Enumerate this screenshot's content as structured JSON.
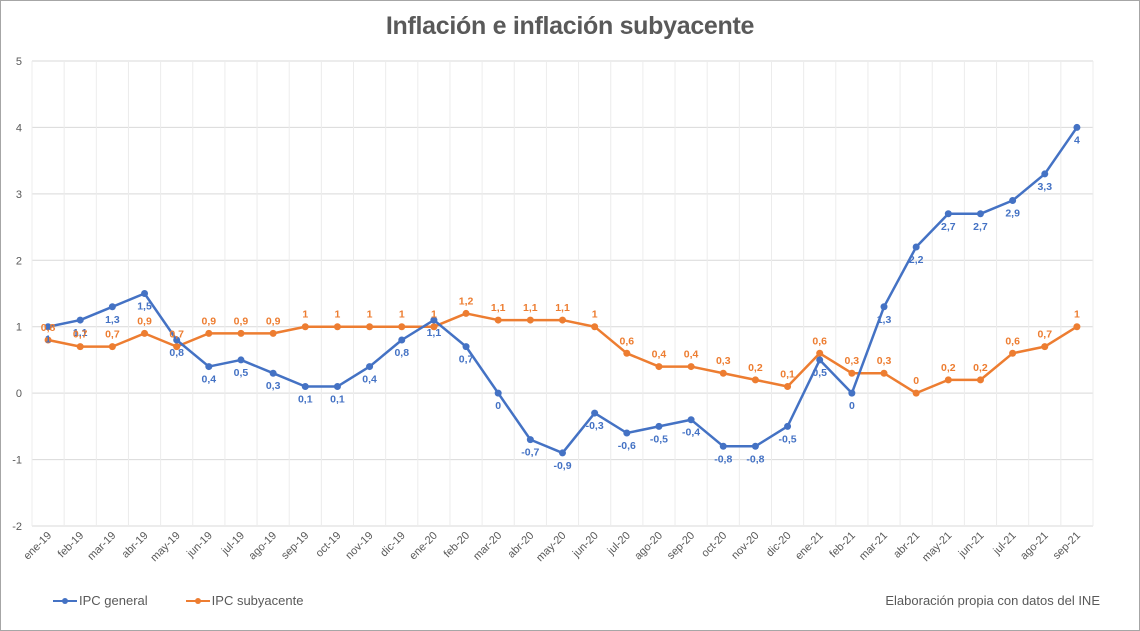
{
  "chart_data": {
    "type": "line",
    "title": "Inflación e inflación subyacente",
    "xlabel": "",
    "ylabel": "",
    "ylim": [
      -2,
      5
    ],
    "yticks": [
      "5",
      "4",
      "3",
      "2",
      "1",
      "0",
      "-1",
      "-2"
    ],
    "ytick_values": [
      5,
      4,
      3,
      2,
      1,
      0,
      -1,
      -2
    ],
    "grid": true,
    "legend_position": "bottom-left",
    "categories": [
      "ene-19",
      "feb-19",
      "mar-19",
      "abr-19",
      "may-19",
      "jun-19",
      "jul-19",
      "ago-19",
      "sep-19",
      "oct-19",
      "nov-19",
      "dic-19",
      "ene-20",
      "feb-20",
      "mar-20",
      "abr-20",
      "may-20",
      "jun-20",
      "jul-20",
      "ago-20",
      "sep-20",
      "oct-20",
      "nov-20",
      "dic-20",
      "ene-21",
      "feb-21",
      "mar-21",
      "abr-21",
      "may-21",
      "jun-21",
      "jul-21",
      "ago-21",
      "sep-21"
    ],
    "series": [
      {
        "name": "IPC general",
        "color": "#4472c4",
        "values": [
          1,
          1.1,
          1.3,
          1.5,
          0.8,
          0.4,
          0.5,
          0.3,
          0.1,
          0.1,
          0.4,
          0.8,
          1.1,
          0.7,
          0,
          -0.7,
          -0.9,
          -0.3,
          -0.6,
          -0.5,
          -0.4,
          -0.8,
          -0.8,
          -0.5,
          0.5,
          0,
          1.3,
          2.2,
          2.7,
          2.7,
          2.9,
          3.3,
          4
        ],
        "labels": [
          "1",
          "1,1",
          "1,3",
          "1,5",
          "0,8",
          "0,4",
          "0,5",
          "0,3",
          "0,1",
          "0,1",
          "0,4",
          "0,8",
          "1,1",
          "0,7",
          "0",
          "-0,7",
          "-0,9",
          "-0,3",
          "-0,6",
          "-0,5",
          "-0,4",
          "-0,8",
          "-0,8",
          "-0,5",
          "0,5",
          "0",
          "1,3",
          "2,2",
          "2,7",
          "2,7",
          "2,9",
          "3,3",
          "4"
        ]
      },
      {
        "name": "IPC subyacente",
        "color": "#ed7d31",
        "values": [
          0.8,
          0.7,
          0.7,
          0.9,
          0.7,
          0.9,
          0.9,
          0.9,
          1,
          1,
          1,
          1,
          1,
          1.2,
          1.1,
          1.1,
          1.1,
          1,
          0.6,
          0.4,
          0.4,
          0.3,
          0.2,
          0.1,
          0.6,
          0.3,
          0.3,
          0,
          0.2,
          0.2,
          0.6,
          0.7,
          1
        ],
        "labels": [
          "0,8",
          "0,7",
          "0,7",
          "0,9",
          "0,7",
          "0,9",
          "0,9",
          "0,9",
          "1",
          "1",
          "1",
          "1",
          "1",
          "1,2",
          "1,1",
          "1,1",
          "1,1",
          "1",
          "0,6",
          "0,4",
          "0,4",
          "0,3",
          "0,2",
          "0,1",
          "0,6",
          "0,3",
          "0,3",
          "0",
          "0,2",
          "0,2",
          "0,6",
          "0,7",
          "1"
        ]
      }
    ],
    "source_note": "Elaboración propia con datos del INE"
  }
}
